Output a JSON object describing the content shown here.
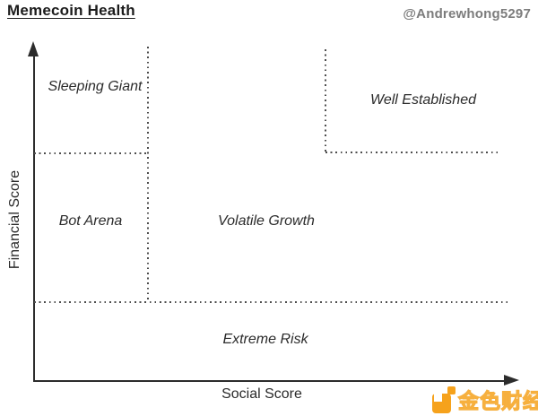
{
  "header": {
    "title": "Memecoin Health",
    "handle": "@Andrewhong5297"
  },
  "axes": {
    "x_label": "Social Score",
    "y_label": "Financial Score"
  },
  "regions": {
    "sleeping_giant": "Sleeping Giant",
    "well_established": "Well Established",
    "bot_arena": "Bot Arena",
    "volatile_growth": "Volatile Growth",
    "extreme_risk": "Extreme Risk"
  },
  "chart_data": {
    "type": "quadrant-diagram",
    "title": "Memecoin Health",
    "xlabel": "Social Score",
    "ylabel": "Financial Score",
    "grid": "dotted partition lines",
    "regions": [
      {
        "label": "Sleeping Giant",
        "x_range": "low",
        "y_range": "high"
      },
      {
        "label": "Well Established",
        "x_range": "high",
        "y_range": "high"
      },
      {
        "label": "Bot Arena",
        "x_range": "low",
        "y_range": "mid"
      },
      {
        "label": "Volatile Growth",
        "x_range": "mid-high",
        "y_range": "mid"
      },
      {
        "label": "Extreme Risk",
        "x_range": "all",
        "y_range": "low"
      }
    ]
  },
  "watermark": {
    "brand": "金色财经"
  },
  "colors": {
    "background": "#ffffff",
    "axis": "#2c2c2c",
    "dotted_line": "#4c4c4c",
    "text": "#2b2b2b",
    "handle_gray": "#7c7c7c",
    "brand_orange": "#f6a21c"
  }
}
